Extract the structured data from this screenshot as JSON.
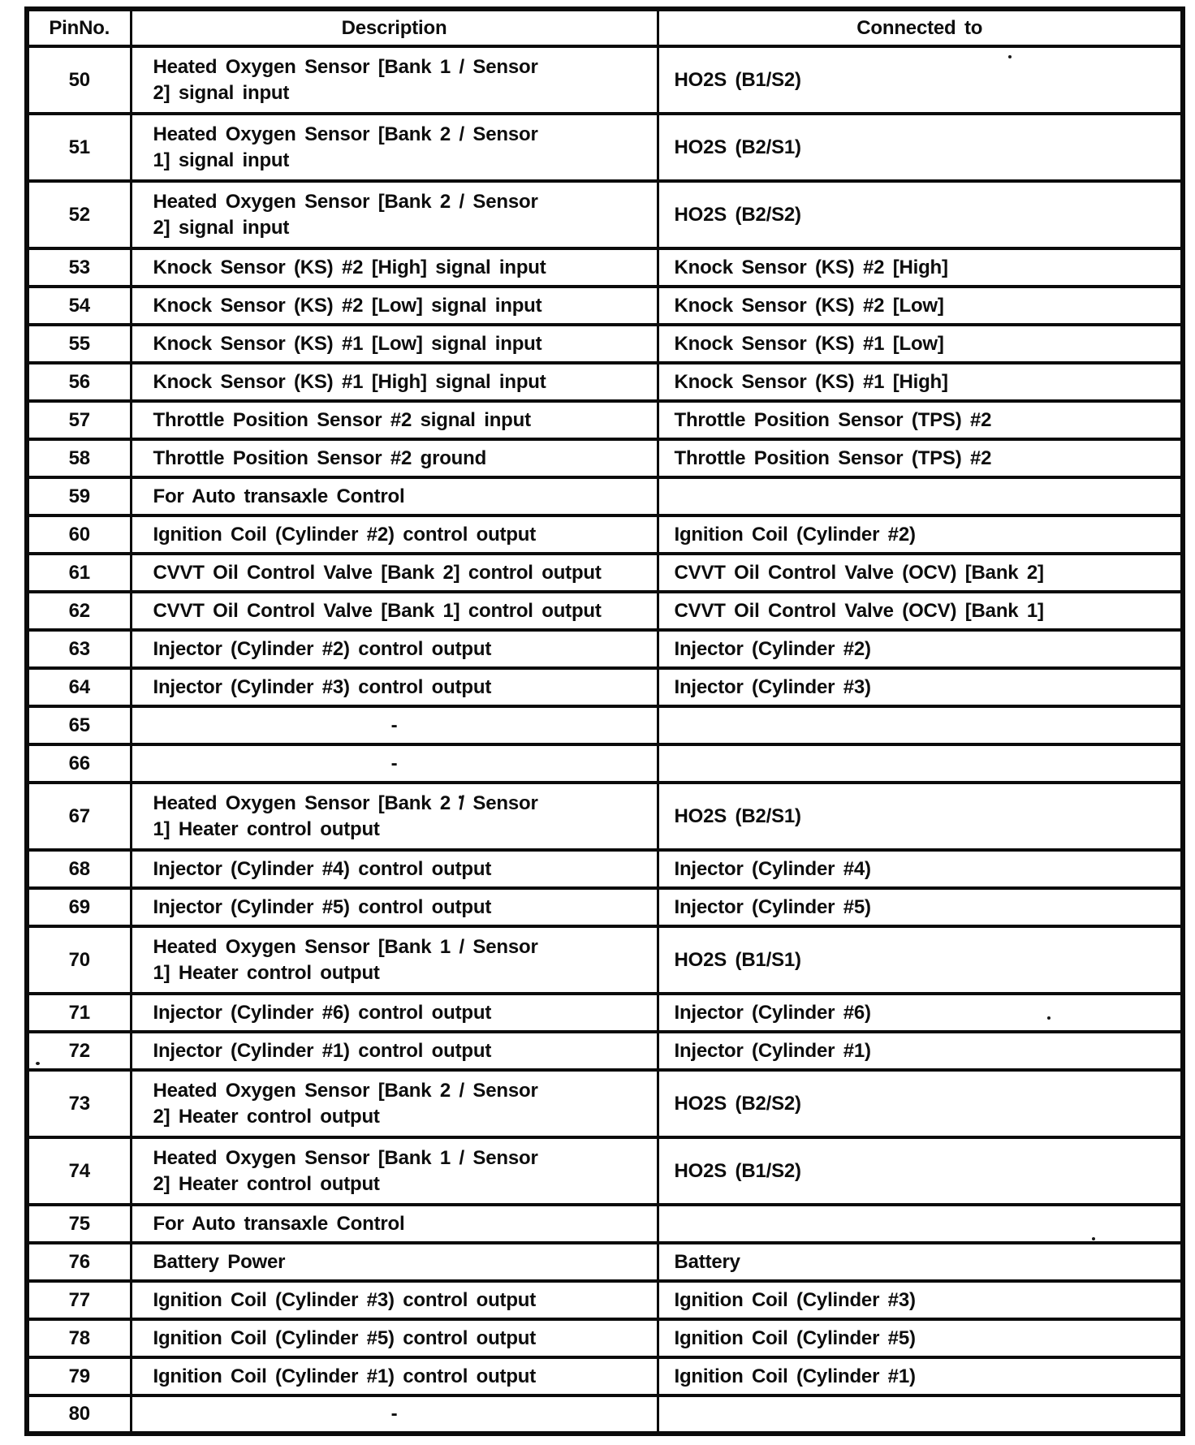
{
  "table": {
    "columns": [
      "PinNo.",
      "Description",
      "Connected to"
    ],
    "rows": [
      {
        "pin": "50",
        "description": "Heated Oxygen Sensor [Bank 1 / Sensor\n2] signal input",
        "connected": "HO2S (B1/S2)"
      },
      {
        "pin": "51",
        "description": "Heated Oxygen Sensor [Bank 2 / Sensor\n1] signal input",
        "connected": "HO2S (B2/S1)"
      },
      {
        "pin": "52",
        "description": "Heated Oxygen Sensor [Bank 2 / Sensor\n2] signal input",
        "connected": "HO2S (B2/S2)"
      },
      {
        "pin": "53",
        "description": "Knock Sensor (KS) #2 [High] signal input",
        "connected": "Knock Sensor (KS) #2 [High]"
      },
      {
        "pin": "54",
        "description": "Knock Sensor (KS) #2 [Low] signal input",
        "connected": "Knock Sensor (KS) #2 [Low]"
      },
      {
        "pin": "55",
        "description": "Knock Sensor (KS) #1 [Low] signal input",
        "connected": "Knock Sensor (KS) #1 [Low]"
      },
      {
        "pin": "56",
        "description": "Knock Sensor (KS) #1 [High] signal input",
        "connected": "Knock Sensor (KS) #1 [High]"
      },
      {
        "pin": "57",
        "description": "Throttle Position Sensor #2 signal input",
        "connected": "Throttle Position Sensor (TPS) #2"
      },
      {
        "pin": "58",
        "description": "Throttle Position Sensor #2 ground",
        "connected": "Throttle Position Sensor (TPS) #2"
      },
      {
        "pin": "59",
        "description": "For Auto transaxle Control",
        "connected": ""
      },
      {
        "pin": "60",
        "description": "Ignition Coil (Cylinder #2) control output",
        "connected": "Ignition Coil (Cylinder #2)"
      },
      {
        "pin": "61",
        "description": "CVVT Oil Control Valve [Bank 2] control output",
        "connected": "CVVT Oil Control Valve (OCV) [Bank 2]"
      },
      {
        "pin": "62",
        "description": "CVVT Oil Control Valve [Bank 1] control output",
        "connected": "CVVT Oil Control Valve (OCV) [Bank 1]"
      },
      {
        "pin": "63",
        "description": "Injector (Cylinder #2) control output",
        "connected": "Injector (Cylinder #2)"
      },
      {
        "pin": "64",
        "description": "Injector (Cylinder #3) control output",
        "connected": "Injector (Cylinder #3)"
      },
      {
        "pin": "65",
        "description": "-",
        "connected": ""
      },
      {
        "pin": "66",
        "description": "-",
        "connected": ""
      },
      {
        "pin": "67",
        "description": "Heated Oxygen Sensor [Bank 2 / Sensor\n1] Heater control output",
        "connected": "HO2S (B2/S1)"
      },
      {
        "pin": "68",
        "description": "Injector (Cylinder #4) control output",
        "connected": "Injector (Cylinder #4)"
      },
      {
        "pin": "69",
        "description": "Injector (Cylinder #5) control output",
        "connected": "Injector (Cylinder #5)"
      },
      {
        "pin": "70",
        "description": "Heated Oxygen Sensor [Bank 1 / Sensor\n1] Heater control output",
        "connected": "HO2S (B1/S1)"
      },
      {
        "pin": "71",
        "description": "Injector (Cylinder #6) control output",
        "connected": "Injector (Cylinder #6)"
      },
      {
        "pin": "72",
        "description": "Injector (Cylinder #1) control output",
        "connected": "Injector (Cylinder #1)"
      },
      {
        "pin": "73",
        "description": "Heated Oxygen Sensor [Bank 2 / Sensor\n2] Heater control output",
        "connected": "HO2S (B2/S2)"
      },
      {
        "pin": "74",
        "description": "Heated Oxygen Sensor [Bank 1 / Sensor\n2] Heater control output",
        "connected": "HO2S (B1/S2)"
      },
      {
        "pin": "75",
        "description": "For Auto transaxle Control",
        "connected": ""
      },
      {
        "pin": "76",
        "description": "Battery Power",
        "connected": "Battery"
      },
      {
        "pin": "77",
        "description": "Ignition Coil (Cylinder #3) control output",
        "connected": "Ignition Coil (Cylinder #3)"
      },
      {
        "pin": "78",
        "description": "Ignition Coil (Cylinder #5) control output",
        "connected": "Ignition Coil (Cylinder #5)"
      },
      {
        "pin": "79",
        "description": "Ignition Coil (Cylinder #1) control output",
        "connected": "Ignition Coil (Cylinder #1)"
      },
      {
        "pin": "80",
        "description": "-",
        "connected": ""
      }
    ]
  }
}
